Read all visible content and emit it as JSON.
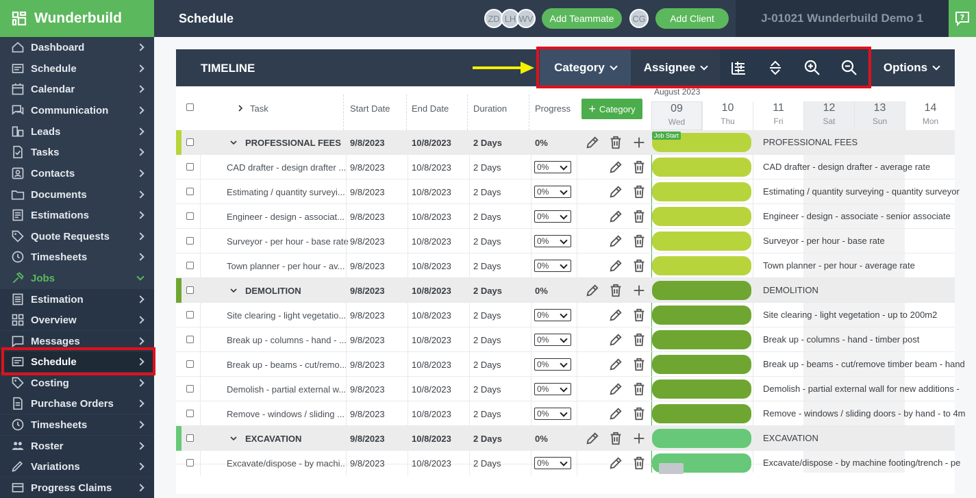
{
  "brand": {
    "name": "Wunderbuild"
  },
  "sidebar": {
    "items": [
      {
        "label": "Dashboard",
        "icon": "dashboard-icon"
      },
      {
        "label": "Schedule",
        "icon": "schedule-icon"
      },
      {
        "label": "Calendar",
        "icon": "calendar-icon"
      },
      {
        "label": "Communication",
        "icon": "chat-icon"
      },
      {
        "label": "Leads",
        "icon": "leads-icon"
      },
      {
        "label": "Tasks",
        "icon": "tasks-icon"
      },
      {
        "label": "Contacts",
        "icon": "contacts-icon"
      },
      {
        "label": "Documents",
        "icon": "folder-icon"
      },
      {
        "label": "Estimations",
        "icon": "estimations-icon"
      },
      {
        "label": "Quote Requests",
        "icon": "tag-icon"
      },
      {
        "label": "Timesheets",
        "icon": "clock-icon"
      },
      {
        "label": "Jobs",
        "icon": "hammer-icon"
      },
      {
        "label": "Estimation",
        "icon": "estimation-icon"
      },
      {
        "label": "Overview",
        "icon": "overview-icon"
      },
      {
        "label": "Messages",
        "icon": "message-icon"
      },
      {
        "label": "Schedule",
        "icon": "schedule-icon"
      },
      {
        "label": "Costing",
        "icon": "tag-icon"
      },
      {
        "label": "Purchase Orders",
        "icon": "document-icon"
      },
      {
        "label": "Timesheets",
        "icon": "clock-icon"
      },
      {
        "label": "Roster",
        "icon": "people-icon"
      },
      {
        "label": "Variations",
        "icon": "variations-icon"
      },
      {
        "label": "Progress Claims",
        "icon": "claims-icon"
      }
    ]
  },
  "topbar": {
    "title": "Schedule",
    "avatars": [
      "ZD",
      "LH",
      "WV"
    ],
    "add_teammate": "Add Teammate",
    "client_avatar": "CG",
    "add_client": "Add Client",
    "job": "J-01021 Wunderbuild Demo 1"
  },
  "timeline": {
    "title": "TIMELINE",
    "category_btn": "Category",
    "assignee_btn": "Assignee",
    "options_btn": "Options"
  },
  "columns": {
    "task": "Task",
    "start": "Start Date",
    "end": "End Date",
    "duration": "Duration",
    "progress": "Progress",
    "add_category": "Category",
    "month": "August 2023"
  },
  "days": [
    {
      "num": "09",
      "dow": "Wed"
    },
    {
      "num": "10",
      "dow": "Thu"
    },
    {
      "num": "11",
      "dow": "Fri"
    },
    {
      "num": "12",
      "dow": "Sat"
    },
    {
      "num": "13",
      "dow": "Sun"
    },
    {
      "num": "14",
      "dow": "Mon"
    }
  ],
  "gantt": {
    "marker": "Job Start"
  },
  "rows": [
    {
      "type": "category",
      "name": "PROFESSIONAL FEES",
      "start": "9/8/2023",
      "end": "10/8/2023",
      "duration": "2 Days",
      "progress": "0%",
      "gantt": "PROFESSIONAL FEES",
      "color": "#b8d43d"
    },
    {
      "type": "task",
      "name": "CAD drafter - design drafter ...",
      "start": "9/8/2023",
      "end": "10/8/2023",
      "duration": "2 Days",
      "progress": "0%",
      "gantt": "CAD drafter - design drafter - average rate",
      "color": "#b8d43d"
    },
    {
      "type": "task",
      "name": "Estimating / quantity surveyi...",
      "start": "9/8/2023",
      "end": "10/8/2023",
      "duration": "2 Days",
      "progress": "0%",
      "gantt": "Estimating / quantity surveying - quantity surveyor",
      "color": "#b8d43d"
    },
    {
      "type": "task",
      "name": "Engineer - design - associat...",
      "start": "9/8/2023",
      "end": "10/8/2023",
      "duration": "2 Days",
      "progress": "0%",
      "gantt": "Engineer - design - associate - senior associate",
      "color": "#b8d43d"
    },
    {
      "type": "task",
      "name": "Surveyor - per hour - base rate",
      "start": "9/8/2023",
      "end": "10/8/2023",
      "duration": "2 Days",
      "progress": "0%",
      "gantt": "Surveyor - per hour - base rate",
      "color": "#b8d43d"
    },
    {
      "type": "task",
      "name": "Town planner - per hour - av...",
      "start": "9/8/2023",
      "end": "10/8/2023",
      "duration": "2 Days",
      "progress": "0%",
      "gantt": "Town planner - per hour - average rate",
      "color": "#b8d43d"
    },
    {
      "type": "category",
      "name": "DEMOLITION",
      "start": "9/8/2023",
      "end": "10/8/2023",
      "duration": "2 Days",
      "progress": "0%",
      "gantt": "DEMOLITION",
      "color": "#6fa632"
    },
    {
      "type": "task",
      "name": "Site clearing - light vegetatio...",
      "start": "9/8/2023",
      "end": "10/8/2023",
      "duration": "2 Days",
      "progress": "0%",
      "gantt": "Site clearing - light vegetation - up to 200m2",
      "color": "#6fa632"
    },
    {
      "type": "task",
      "name": "Break up - columns - hand - ...",
      "start": "9/8/2023",
      "end": "10/8/2023",
      "duration": "2 Days",
      "progress": "0%",
      "gantt": "Break up - columns - hand - timber post",
      "color": "#6fa632"
    },
    {
      "type": "task",
      "name": "Break up - beams - cut/remo...",
      "start": "9/8/2023",
      "end": "10/8/2023",
      "duration": "2 Days",
      "progress": "0%",
      "gantt": "Break up - beams - cut/remove timber beam - hand",
      "color": "#6fa632"
    },
    {
      "type": "task",
      "name": "Demolish - partial external w...",
      "start": "9/8/2023",
      "end": "10/8/2023",
      "duration": "2 Days",
      "progress": "0%",
      "gantt": "Demolish - partial external wall for new additions - ",
      "color": "#6fa632"
    },
    {
      "type": "task",
      "name": "Remove - windows / sliding ...",
      "start": "9/8/2023",
      "end": "10/8/2023",
      "duration": "2 Days",
      "progress": "0%",
      "gantt": "Remove - windows / sliding doors - by hand - to 4m",
      "color": "#6fa632"
    },
    {
      "type": "category",
      "name": "EXCAVATION",
      "start": "9/8/2023",
      "end": "10/8/2023",
      "duration": "2 Days",
      "progress": "0%",
      "gantt": "EXCAVATION",
      "color": "#66c878"
    },
    {
      "type": "task",
      "name": "Excavate/dispose - by machi...",
      "start": "9/8/2023",
      "end": "10/8/2023",
      "duration": "2 Days",
      "progress": "0%",
      "gantt": "Excavate/dispose - by machine footing/trench - pe",
      "color": "#66c878"
    }
  ]
}
